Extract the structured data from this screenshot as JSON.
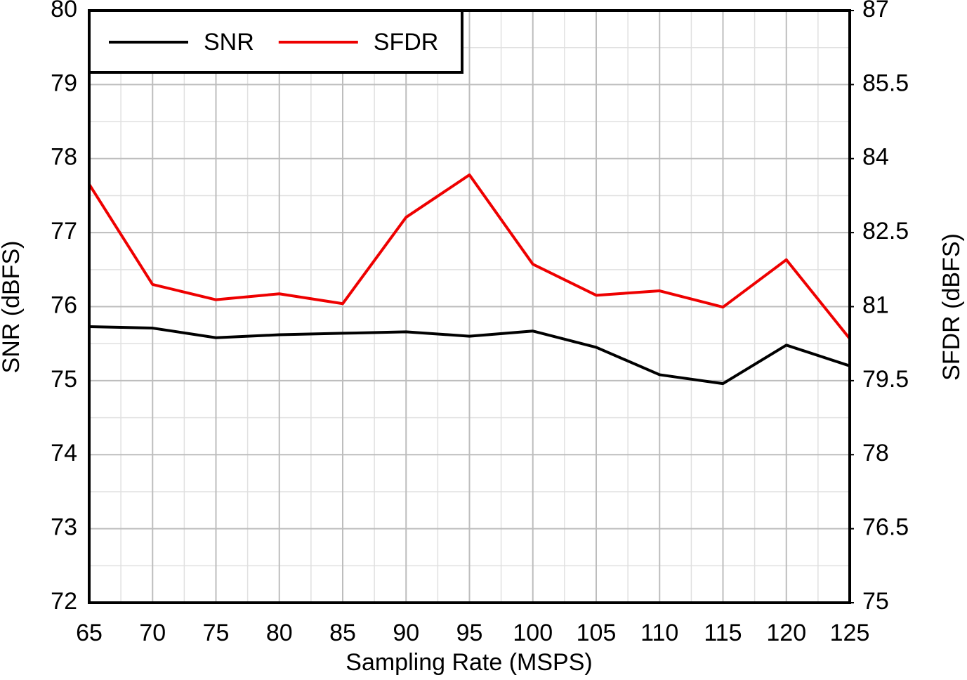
{
  "chart_data": {
    "type": "line",
    "x": [
      65,
      70,
      75,
      80,
      85,
      90,
      95,
      100,
      105,
      110,
      115,
      120,
      125
    ],
    "series": [
      {
        "name": "SNR",
        "color": "#000000",
        "values": [
          75.73,
          75.71,
          75.58,
          75.62,
          75.64,
          75.66,
          75.6,
          75.67,
          75.45,
          75.08,
          74.96,
          75.48,
          75.2
        ]
      },
      {
        "name": "SFDR",
        "color": "#ee0000",
        "axis": "y2",
        "values": [
          83.48,
          81.45,
          81.14,
          81.26,
          81.06,
          82.81,
          83.67,
          81.86,
          81.23,
          81.32,
          80.99,
          81.95,
          80.35
        ]
      }
    ],
    "xlabel": "Sampling Rate (MSPS)",
    "ylabel": "SNR (dBFS)",
    "y2label": "SFDR (dBFS)",
    "xlim": [
      65,
      125
    ],
    "xticks": [
      65,
      70,
      75,
      80,
      85,
      90,
      95,
      100,
      105,
      110,
      115,
      120,
      125
    ],
    "ylim": [
      72,
      80
    ],
    "yticks": [
      72,
      73,
      74,
      75,
      76,
      77,
      78,
      79,
      80
    ],
    "y2lim": [
      75,
      87
    ],
    "y2ticks": [
      75,
      76.5,
      78,
      79.5,
      81,
      82.5,
      84,
      85.5,
      87
    ],
    "grid": true,
    "legend": "upper left"
  }
}
